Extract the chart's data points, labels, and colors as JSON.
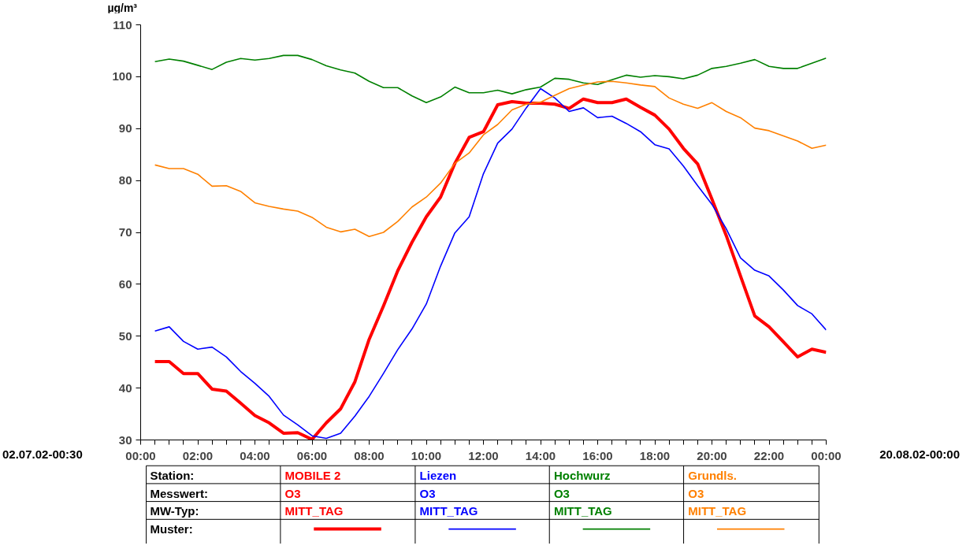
{
  "chart_data": {
    "type": "line",
    "ylabel": "µg/m³",
    "x": [
      0.5,
      1,
      1.5,
      2,
      2.5,
      3,
      3.5,
      4,
      4.5,
      5,
      5.5,
      6,
      6.5,
      7,
      7.5,
      8,
      8.5,
      9,
      9.5,
      10,
      10.5,
      11,
      11.5,
      12,
      12.5,
      13,
      13.5,
      14,
      14.5,
      15,
      15.5,
      16,
      16.5,
      17,
      17.5,
      18,
      18.5,
      19,
      19.5,
      20,
      20.5,
      21,
      21.5,
      22,
      22.5,
      23,
      23.5,
      24
    ],
    "xlim": [
      0,
      24
    ],
    "xticks": [
      {
        "value": 0,
        "label": "00:00"
      },
      {
        "value": 0.5,
        "label": null
      },
      {
        "value": 1,
        "label": null
      },
      {
        "value": 1.5,
        "label": null
      },
      {
        "value": 2,
        "label": "02:00"
      },
      {
        "value": 2.5,
        "label": null
      },
      {
        "value": 3,
        "label": null
      },
      {
        "value": 3.5,
        "label": null
      },
      {
        "value": 4,
        "label": "04:00"
      },
      {
        "value": 4.5,
        "label": null
      },
      {
        "value": 5,
        "label": null
      },
      {
        "value": 5.5,
        "label": null
      },
      {
        "value": 6,
        "label": "06:00"
      },
      {
        "value": 6.5,
        "label": null
      },
      {
        "value": 7,
        "label": null
      },
      {
        "value": 7.5,
        "label": null
      },
      {
        "value": 8,
        "label": "08:00"
      },
      {
        "value": 8.5,
        "label": null
      },
      {
        "value": 9,
        "label": null
      },
      {
        "value": 9.5,
        "label": null
      },
      {
        "value": 10,
        "label": "10:00"
      },
      {
        "value": 10.5,
        "label": null
      },
      {
        "value": 11,
        "label": null
      },
      {
        "value": 11.5,
        "label": null
      },
      {
        "value": 12,
        "label": "12:00"
      },
      {
        "value": 12.5,
        "label": null
      },
      {
        "value": 13,
        "label": null
      },
      {
        "value": 13.5,
        "label": null
      },
      {
        "value": 14,
        "label": "14:00"
      },
      {
        "value": 14.5,
        "label": null
      },
      {
        "value": 15,
        "label": null
      },
      {
        "value": 15.5,
        "label": null
      },
      {
        "value": 16,
        "label": "16:00"
      },
      {
        "value": 16.5,
        "label": null
      },
      {
        "value": 17,
        "label": null
      },
      {
        "value": 17.5,
        "label": null
      },
      {
        "value": 18,
        "label": "18:00"
      },
      {
        "value": 18.5,
        "label": null
      },
      {
        "value": 19,
        "label": null
      },
      {
        "value": 19.5,
        "label": null
      },
      {
        "value": 20,
        "label": "20:00"
      },
      {
        "value": 20.5,
        "label": null
      },
      {
        "value": 21,
        "label": null
      },
      {
        "value": 21.5,
        "label": null
      },
      {
        "value": 22,
        "label": "22:00"
      },
      {
        "value": 22.5,
        "label": null
      },
      {
        "value": 23,
        "label": null
      },
      {
        "value": 23.5,
        "label": null
      },
      {
        "value": 24,
        "label": "00:00"
      }
    ],
    "ylim": [
      30,
      110
    ],
    "yticks": [
      30,
      40,
      50,
      60,
      70,
      80,
      90,
      100,
      110
    ],
    "grid": false,
    "legend": "bottom",
    "marker": "none",
    "line_style": "solid",
    "series": [
      {
        "name": "MOBILE 2",
        "color": "#ff0000",
        "values": [
          45.1,
          45.1,
          42.8,
          42.8,
          39.8,
          39.4,
          37.1,
          34.7,
          33.3,
          31.3,
          31.4,
          30.1,
          33.3,
          36.0,
          41.2,
          49.4,
          55.8,
          62.6,
          68.1,
          73.0,
          76.8,
          83.3,
          88.3,
          89.4,
          94.6,
          95.2,
          94.9,
          94.9,
          94.7,
          93.9,
          95.7,
          95.0,
          95.0,
          95.7,
          94.1,
          92.6,
          89.9,
          86.2,
          83.2,
          76.4,
          69.4,
          61.6,
          53.9,
          51.8,
          48.9,
          46.0,
          47.5,
          46.9
        ]
      },
      {
        "name": "Liezen",
        "color": "#0000ff",
        "values": [
          51.0,
          51.8,
          49.0,
          47.5,
          47.9,
          46.0,
          43.2,
          40.9,
          38.4,
          34.8,
          32.9,
          30.8,
          30.3,
          31.3,
          34.6,
          38.4,
          42.8,
          47.4,
          51.4,
          56.2,
          63.5,
          69.9,
          73.0,
          81.3,
          87.2,
          89.9,
          94.0,
          97.7,
          95.9,
          93.3,
          94.0,
          92.1,
          92.4,
          91.0,
          89.4,
          86.9,
          86.1,
          82.8,
          79.0,
          75.4,
          70.7,
          65.1,
          62.7,
          61.6,
          58.9,
          55.9,
          54.3,
          51.2
        ]
      },
      {
        "name": "Hochwurz",
        "color": "#008000",
        "values": [
          102.9,
          103.4,
          103.0,
          102.2,
          101.4,
          102.8,
          103.5,
          103.2,
          103.5,
          104.1,
          104.1,
          103.3,
          102.1,
          101.3,
          100.7,
          99.1,
          97.9,
          97.9,
          96.3,
          95.0,
          96.1,
          98.0,
          96.9,
          96.9,
          97.4,
          96.7,
          97.5,
          98.0,
          99.7,
          99.5,
          98.8,
          98.5,
          99.4,
          100.3,
          99.9,
          100.2,
          100.0,
          99.6,
          100.3,
          101.6,
          102.0,
          102.6,
          103.3,
          102.0,
          101.6,
          101.6,
          102.6,
          103.6
        ]
      },
      {
        "name": "Grundls.",
        "color": "#ff8000",
        "values": [
          83.0,
          82.3,
          82.3,
          81.2,
          78.9,
          79.0,
          77.9,
          75.7,
          75.0,
          74.5,
          74.1,
          72.9,
          71.0,
          70.1,
          70.6,
          69.2,
          70.0,
          72.1,
          74.9,
          76.8,
          79.5,
          83.3,
          85.3,
          88.8,
          90.8,
          93.6,
          94.7,
          95.1,
          96.4,
          97.7,
          98.4,
          99.0,
          99.1,
          98.8,
          98.4,
          98.1,
          95.9,
          94.7,
          93.9,
          95.0,
          93.3,
          92.1,
          90.1,
          89.6,
          88.6,
          87.6,
          86.2,
          86.8
        ]
      }
    ],
    "annotations": [
      "02.07.02-00:30",
      "20.08.02-00:00",
      "Station:",
      "Messwert:",
      "MW-Typ:",
      "Muster:",
      "O3",
      "MITT_TAG",
      "O3",
      "MITT_TAG",
      "O3",
      "MITT_TAG",
      "O3",
      "MITT_TAG"
    ]
  }
}
